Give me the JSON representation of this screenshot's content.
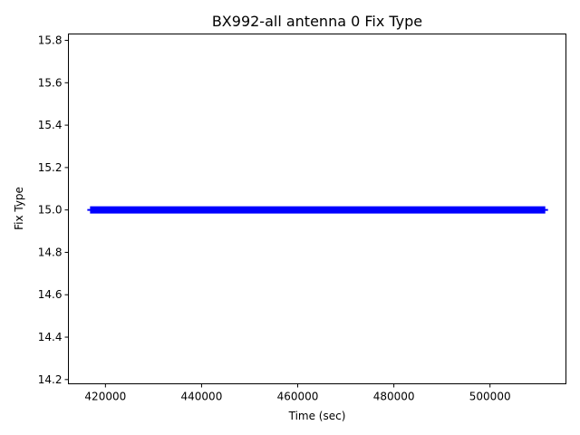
{
  "chart_data": {
    "type": "line",
    "title": "BX992-all antenna 0 Fix Type",
    "xlabel": "Time (sec)",
    "ylabel": "Fix Type",
    "xlim": [
      412300,
      515800
    ],
    "ylim": [
      14.18,
      15.83
    ],
    "xticks": [
      420000,
      440000,
      460000,
      480000,
      500000
    ],
    "xtick_labels": [
      "420000",
      "440000",
      "460000",
      "480000",
      "500000"
    ],
    "yticks": [
      14.2,
      14.4,
      14.6,
      14.8,
      15.0,
      15.2,
      15.4,
      15.6,
      15.8
    ],
    "ytick_labels": [
      "14.2",
      "14.4",
      "14.6",
      "14.8",
      "15.0",
      "15.2",
      "15.4",
      "15.6",
      "15.8"
    ],
    "series": [
      {
        "color": "#0000ff",
        "marker": "plus",
        "x_start": 416800,
        "x_end": 511500,
        "y": 15.0
      }
    ],
    "grid": false
  }
}
